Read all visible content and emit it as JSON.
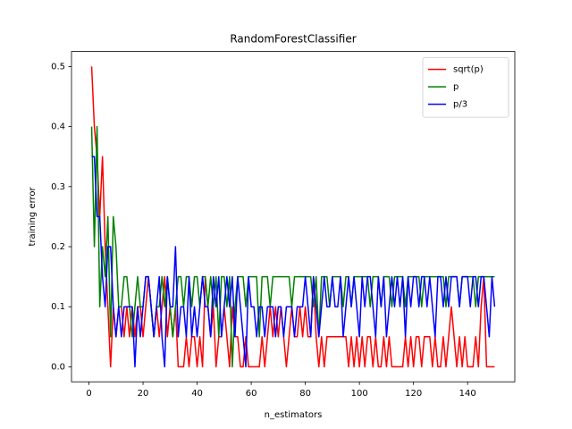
{
  "chart_data": {
    "type": "line",
    "title": "RandomForestClassifier",
    "xlabel": "n_estimators",
    "ylabel": "training error",
    "x": [
      1,
      2,
      3,
      4,
      5,
      6,
      7,
      8,
      9,
      10,
      11,
      12,
      13,
      14,
      15,
      16,
      17,
      18,
      19,
      20,
      21,
      22,
      23,
      24,
      25,
      26,
      27,
      28,
      29,
      30,
      31,
      32,
      33,
      34,
      35,
      36,
      37,
      38,
      39,
      40,
      41,
      42,
      43,
      44,
      45,
      46,
      47,
      48,
      49,
      50,
      51,
      52,
      53,
      54,
      55,
      56,
      57,
      58,
      59,
      60,
      61,
      62,
      63,
      64,
      65,
      66,
      67,
      68,
      69,
      70,
      71,
      72,
      73,
      74,
      75,
      76,
      77,
      78,
      79,
      80,
      81,
      82,
      83,
      84,
      85,
      86,
      87,
      88,
      89,
      90,
      91,
      92,
      93,
      94,
      95,
      96,
      97,
      98,
      99,
      100,
      101,
      102,
      103,
      104,
      105,
      106,
      107,
      108,
      109,
      110,
      111,
      112,
      113,
      114,
      115,
      116,
      117,
      118,
      119,
      120,
      121,
      122,
      123,
      124,
      125,
      126,
      127,
      128,
      129,
      130,
      131,
      132,
      133,
      134,
      135,
      136,
      137,
      138,
      139,
      140,
      141,
      142,
      143,
      144,
      145,
      146,
      147,
      148,
      149,
      150
    ],
    "series": [
      {
        "name": "sqrt(p)",
        "color": "#ff0000",
        "values": [
          0.5,
          0.4,
          0.35,
          0.25,
          0.35,
          0.2,
          0.1,
          0,
          0.1,
          0.05,
          0.1,
          0.1,
          0.05,
          0.1,
          0.05,
          0.1,
          0.05,
          0.1,
          0.1,
          0.05,
          0.1,
          0.15,
          0.1,
          0.05,
          0.1,
          0.05,
          0.1,
          0.15,
          0.05,
          0.1,
          0.05,
          0.1,
          0,
          0,
          0,
          0.05,
          0,
          0.05,
          0.05,
          0,
          0.05,
          0,
          0.15,
          0.1,
          0.05,
          0.1,
          0,
          0.05,
          0.05,
          0.1,
          0.05,
          0,
          0.1,
          0.05,
          0.05,
          0,
          0,
          0.05,
          0,
          0,
          0,
          0,
          0,
          0.05,
          0,
          0.05,
          0.1,
          0.05,
          0.1,
          0.05,
          0.1,
          0.05,
          0,
          0.05,
          0.1,
          0.05,
          0.05,
          0.1,
          0.05,
          0.1,
          0.05,
          0.05,
          0.15,
          0.05,
          0,
          0.05,
          0,
          0.05,
          0.05,
          0.05,
          0.05,
          0.05,
          0.05,
          0.05,
          0.05,
          0,
          0.05,
          0,
          0.05,
          0,
          0.05,
          0,
          0.05,
          0.05,
          0,
          0.05,
          0,
          0,
          0.05,
          0,
          0.05,
          0,
          0,
          0,
          0,
          0,
          0.05,
          0,
          0.05,
          0,
          0.05,
          0.05,
          0,
          0.05,
          0.05,
          0.05,
          0,
          0.05,
          0,
          0,
          0.05,
          0,
          0.05,
          0.1,
          0.05,
          0,
          0.05,
          0,
          0.05,
          0,
          0,
          0,
          0.05,
          0,
          0.1,
          0.15,
          0,
          0,
          0,
          0
        ]
      },
      {
        "name": "p",
        "color": "#008000",
        "values": [
          0.4,
          0.2,
          0.4,
          0.1,
          0.2,
          0.15,
          0.25,
          0.05,
          0.25,
          0.2,
          0.1,
          0.1,
          0.15,
          0.15,
          0.1,
          0.05,
          0.1,
          0.15,
          0.1,
          0.1,
          0.15,
          0.15,
          0.1,
          0.05,
          0.1,
          0.1,
          0.15,
          0.1,
          0.15,
          0.1,
          0.05,
          0.1,
          0.15,
          0.15,
          0.1,
          0.15,
          0.15,
          0.1,
          0.15,
          0.15,
          0.1,
          0.15,
          0.15,
          0.1,
          0.15,
          0.1,
          0.15,
          0.05,
          0.15,
          0.15,
          0.1,
          0.15,
          0,
          0.1,
          0.15,
          0.15,
          0.15,
          0.1,
          0.15,
          0.15,
          0.15,
          0.15,
          0.05,
          0.15,
          0.15,
          0.15,
          0.1,
          0.15,
          0.15,
          0.15,
          0.15,
          0.15,
          0.15,
          0.15,
          0.1,
          0.15,
          0.15,
          0.15,
          0.15,
          0.15,
          0.15,
          0.15,
          0.1,
          0.15,
          0.05,
          0.15,
          0.15,
          0.15,
          0.1,
          0.15,
          0.15,
          0.15,
          0.15,
          0.1,
          0.15,
          0.15,
          0.1,
          0.15,
          0.15,
          0.15,
          0.15,
          0.15,
          0.15,
          0.1,
          0.15,
          0.15,
          0.15,
          0.1,
          0.15,
          0.15,
          0.15,
          0.1,
          0.15,
          0.15,
          0.15,
          0.15,
          0.1,
          0.15,
          0.15,
          0.15,
          0.15,
          0.15,
          0.1,
          0.15,
          0.15,
          0.15,
          0.15,
          0.15,
          0.15,
          0.15,
          0.15,
          0.1,
          0.15,
          0.15,
          0.15,
          0.15,
          0.1,
          0.15,
          0.15,
          0.15,
          0.15,
          0.15,
          0.1,
          0.15,
          0.15,
          0.15,
          0.15,
          0.15,
          0.15,
          0.15
        ]
      },
      {
        "name": "p/3",
        "color": "#0000ff",
        "values": [
          0.35,
          0.35,
          0.25,
          0.25,
          0.15,
          0.1,
          0.2,
          0.2,
          0.1,
          0.05,
          0.1,
          0.05,
          0.1,
          0.1,
          0.1,
          0.1,
          0,
          0.1,
          0.05,
          0.1,
          0.15,
          0.15,
          0.1,
          0.05,
          0.1,
          0.15,
          0.05,
          0,
          0.15,
          0.1,
          0.1,
          0.2,
          0.05,
          0.1,
          0.1,
          0.05,
          0.15,
          0.05,
          0.1,
          0.05,
          0.1,
          0.15,
          0.1,
          0.1,
          0.05,
          0.15,
          0.1,
          0.15,
          0.05,
          0.1,
          0.15,
          0.1,
          0.15,
          0.05,
          0.15,
          0.1,
          0.05,
          0,
          0.15,
          0.1,
          0.1,
          0.05,
          0.1,
          0.1,
          0.05,
          0.1,
          0.1,
          0.1,
          0.05,
          0.1,
          0.1,
          0.05,
          0.1,
          0.1,
          0.1,
          0.05,
          0.1,
          0.1,
          0.1,
          0.15,
          0.1,
          0.05,
          0.15,
          0.1,
          0.05,
          0.1,
          0.15,
          0.1,
          0.1,
          0.15,
          0.1,
          0.1,
          0.15,
          0.05,
          0.1,
          0.15,
          0.1,
          0.15,
          0.1,
          0.05,
          0.15,
          0.1,
          0.15,
          0.15,
          0.1,
          0.05,
          0.15,
          0.1,
          0.15,
          0.05,
          0.1,
          0.15,
          0.1,
          0.15,
          0.1,
          0.15,
          0.05,
          0.15,
          0.1,
          0.15,
          0.15,
          0.1,
          0.15,
          0.15,
          0.1,
          0.15,
          0.1,
          0.05,
          0.15,
          0.15,
          0.1,
          0.15,
          0.1,
          0.15,
          0.15,
          0.15,
          0.1,
          0.15,
          0.15,
          0.15,
          0.1,
          0.15,
          0.15,
          0.1,
          0.15,
          0.15,
          0.1,
          0.05,
          0.15,
          0.1
        ]
      }
    ],
    "xlim": [
      -6.45,
      157.45
    ],
    "ylim": [
      -0.025,
      0.525
    ],
    "xticks": [
      0,
      20,
      40,
      60,
      80,
      100,
      120,
      140
    ],
    "yticks": [
      {
        "value": 0,
        "label": "0.0"
      },
      0.1,
      0.2,
      0.3,
      0.4,
      0.5
    ],
    "legend": "upper right"
  }
}
